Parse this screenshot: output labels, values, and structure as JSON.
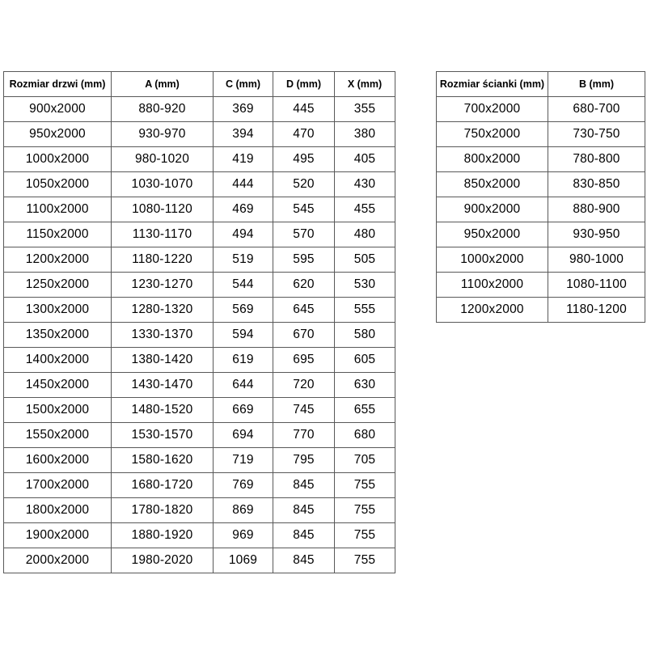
{
  "page": {
    "background_color": "#ffffff",
    "table_border_color": "#595959",
    "text_color": "#000000"
  },
  "doors_table": {
    "headers": [
      "Rozmiar drzwi (mm)",
      "A (mm)",
      "C (mm)",
      "D (mm)",
      "X (mm)"
    ],
    "rows": [
      [
        "900x2000",
        "880-920",
        "369",
        "445",
        "355"
      ],
      [
        "950x2000",
        "930-970",
        "394",
        "470",
        "380"
      ],
      [
        "1000x2000",
        "980-1020",
        "419",
        "495",
        "405"
      ],
      [
        "1050x2000",
        "1030-1070",
        "444",
        "520",
        "430"
      ],
      [
        "1100x2000",
        "1080-1120",
        "469",
        "545",
        "455"
      ],
      [
        "1150x2000",
        "1130-1170",
        "494",
        "570",
        "480"
      ],
      [
        "1200x2000",
        "1180-1220",
        "519",
        "595",
        "505"
      ],
      [
        "1250x2000",
        "1230-1270",
        "544",
        "620",
        "530"
      ],
      [
        "1300x2000",
        "1280-1320",
        "569",
        "645",
        "555"
      ],
      [
        "1350x2000",
        "1330-1370",
        "594",
        "670",
        "580"
      ],
      [
        "1400x2000",
        "1380-1420",
        "619",
        "695",
        "605"
      ],
      [
        "1450x2000",
        "1430-1470",
        "644",
        "720",
        "630"
      ],
      [
        "1500x2000",
        "1480-1520",
        "669",
        "745",
        "655"
      ],
      [
        "1550x2000",
        "1530-1570",
        "694",
        "770",
        "680"
      ],
      [
        "1600x2000",
        "1580-1620",
        "719",
        "795",
        "705"
      ],
      [
        "1700x2000",
        "1680-1720",
        "769",
        "845",
        "755"
      ],
      [
        "1800x2000",
        "1780-1820",
        "869",
        "845",
        "755"
      ],
      [
        "1900x2000",
        "1880-1920",
        "969",
        "845",
        "755"
      ],
      [
        "2000x2000",
        "1980-2020",
        "1069",
        "845",
        "755"
      ]
    ]
  },
  "walls_table": {
    "headers": [
      "Rozmiar ścianki (mm)",
      "B (mm)"
    ],
    "rows": [
      [
        "700x2000",
        "680-700"
      ],
      [
        "750x2000",
        "730-750"
      ],
      [
        "800x2000",
        "780-800"
      ],
      [
        "850x2000",
        "830-850"
      ],
      [
        "900x2000",
        "880-900"
      ],
      [
        "950x2000",
        "930-950"
      ],
      [
        "1000x2000",
        "980-1000"
      ],
      [
        "1100x2000",
        "1080-1100"
      ],
      [
        "1200x2000",
        "1180-1200"
      ]
    ]
  }
}
